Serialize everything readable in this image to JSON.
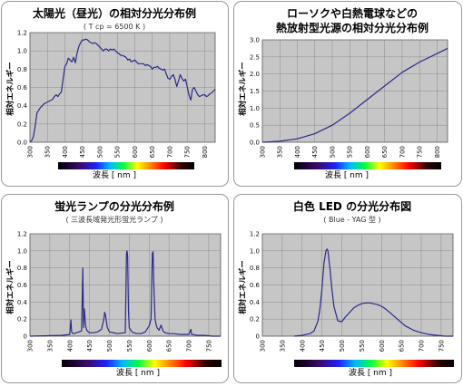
{
  "chart_data": [
    {
      "type": "line",
      "title": "太陽光（昼光）の相対分光分布例",
      "subtitle": "( T cp = 6500 K )",
      "xlabel": "波長 [ nm ]",
      "ylabel": "相対エネルギー",
      "x_ticks": [
        "300",
        "350",
        "400",
        "450",
        "500",
        "550",
        "600",
        "650",
        "700",
        "750",
        "800"
      ],
      "y_ticks": [
        "0.0",
        "0.2",
        "0.4",
        "0.6",
        "0.8",
        "1.0",
        "1.2"
      ],
      "xlim": [
        300,
        830
      ],
      "ylim": [
        0,
        1.2
      ],
      "grid": true,
      "series": [
        {
          "color": "#2a2a8a",
          "x": [
            300,
            305,
            310,
            315,
            320,
            325,
            330,
            335,
            340,
            345,
            350,
            355,
            360,
            365,
            370,
            375,
            380,
            385,
            390,
            395,
            400,
            405,
            410,
            415,
            420,
            425,
            430,
            435,
            440,
            445,
            450,
            455,
            460,
            465,
            470,
            475,
            480,
            485,
            490,
            495,
            500,
            505,
            510,
            515,
            520,
            525,
            530,
            535,
            540,
            545,
            550,
            555,
            560,
            565,
            570,
            575,
            580,
            585,
            590,
            595,
            600,
            605,
            610,
            615,
            620,
            625,
            630,
            635,
            640,
            645,
            650,
            655,
            660,
            665,
            670,
            675,
            680,
            685,
            690,
            695,
            700,
            705,
            710,
            715,
            720,
            725,
            730,
            735,
            740,
            745,
            750,
            755,
            760,
            765,
            770,
            775,
            780,
            785,
            790,
            795,
            800,
            805,
            810,
            815,
            820,
            825,
            830
          ],
          "y": [
            0.0,
            0.02,
            0.06,
            0.18,
            0.32,
            0.35,
            0.38,
            0.4,
            0.42,
            0.43,
            0.44,
            0.45,
            0.46,
            0.47,
            0.5,
            0.52,
            0.5,
            0.53,
            0.55,
            0.7,
            0.83,
            0.86,
            0.92,
            0.9,
            0.88,
            0.93,
            0.87,
            0.98,
            1.05,
            1.09,
            1.12,
            1.12,
            1.13,
            1.12,
            1.1,
            1.09,
            1.08,
            1.09,
            1.08,
            1.06,
            1.04,
            1.02,
            1.0,
            1.02,
            1.02,
            1.0,
            1.02,
            1.01,
            1.02,
            1.0,
            0.98,
            0.97,
            0.95,
            0.95,
            0.94,
            0.93,
            0.9,
            0.91,
            0.88,
            0.89,
            0.9,
            0.88,
            0.86,
            0.86,
            0.86,
            0.86,
            0.84,
            0.85,
            0.84,
            0.83,
            0.8,
            0.82,
            0.82,
            0.83,
            0.81,
            0.8,
            0.79,
            0.8,
            0.75,
            0.7,
            0.69,
            0.72,
            0.74,
            0.69,
            0.61,
            0.67,
            0.74,
            0.7,
            0.67,
            0.69,
            0.61,
            0.52,
            0.46,
            0.58,
            0.6,
            0.56,
            0.52,
            0.5,
            0.51,
            0.52,
            0.52,
            0.5,
            0.51,
            0.53,
            0.54,
            0.56,
            0.58
          ]
        }
      ]
    },
    {
      "type": "line",
      "title": "ローソクや白熱電球などの",
      "title2": "熱放射型光源の相対分光分布例",
      "xlabel": "波長 [ nm ]",
      "ylabel": "相対エネルギー",
      "x_ticks": [
        "300",
        "350",
        "400",
        "450",
        "500",
        "550",
        "600",
        "650",
        "700",
        "750",
        "800"
      ],
      "y_ticks": [
        "0.0",
        "0.5",
        "1.0",
        "1.5",
        "2.0",
        "2.5",
        "3.0"
      ],
      "xlim": [
        300,
        830
      ],
      "ylim": [
        0,
        3.0
      ],
      "grid": true,
      "series": [
        {
          "color": "#2a2a8a",
          "x": [
            300,
            350,
            400,
            450,
            500,
            550,
            600,
            650,
            700,
            750,
            800,
            830
          ],
          "y": [
            0.0,
            0.03,
            0.1,
            0.25,
            0.5,
            0.85,
            1.25,
            1.65,
            2.05,
            2.35,
            2.6,
            2.75
          ]
        }
      ]
    },
    {
      "type": "line",
      "title": "蛍光ランプの分光分布例",
      "subtitle": "( 三波長域発光形蛍光ランプ )",
      "xlabel": "波長 [ nm ]",
      "ylabel": "相対エネルギー",
      "x_ticks": [
        "300",
        "350",
        "400",
        "450",
        "500",
        "550",
        "600",
        "650",
        "700",
        "750"
      ],
      "y_ticks": [
        "0",
        "0.2",
        "0.4",
        "0.6",
        "0.8",
        "1.0",
        "1.2"
      ],
      "xlim": [
        300,
        780
      ],
      "ylim": [
        0,
        1.2
      ],
      "grid": true,
      "series": [
        {
          "color": "#2a2a8a",
          "x": [
            300,
            380,
            400,
            403,
            405,
            408,
            410,
            430,
            433,
            435,
            437,
            440,
            443,
            445,
            447,
            450,
            460,
            470,
            480,
            486,
            488,
            490,
            495,
            500,
            520,
            540,
            543,
            544,
            545,
            546,
            548,
            550,
            555,
            560,
            570,
            580,
            590,
            600,
            605,
            608,
            610,
            612,
            615,
            618,
            620,
            625,
            630,
            635,
            640,
            650,
            660,
            680,
            700,
            705,
            707,
            710,
            720,
            740,
            760,
            780
          ],
          "y": [
            0.0,
            0.01,
            0.02,
            0.19,
            0.05,
            0.03,
            0.03,
            0.06,
            0.8,
            0.1,
            0.32,
            0.12,
            0.07,
            0.06,
            0.05,
            0.04,
            0.04,
            0.05,
            0.08,
            0.2,
            0.28,
            0.25,
            0.1,
            0.05,
            0.03,
            0.04,
            0.95,
            1.0,
            0.98,
            0.93,
            0.3,
            0.1,
            0.06,
            0.04,
            0.03,
            0.03,
            0.05,
            0.12,
            0.2,
            0.97,
            0.99,
            0.6,
            0.2,
            0.13,
            0.1,
            0.07,
            0.13,
            0.06,
            0.04,
            0.03,
            0.03,
            0.02,
            0.02,
            0.08,
            0.02,
            0.02,
            0.01,
            0.01,
            0.0,
            0.0
          ]
        }
      ]
    },
    {
      "type": "line",
      "title": "白色 LED の分光分布図",
      "subtitle": "( Blue - YAG 型 )",
      "xlabel": "波長 [ nm ]",
      "ylabel": "相対エネルギー",
      "x_ticks": [
        "300",
        "350",
        "400",
        "450",
        "500",
        "550",
        "600",
        "650",
        "700",
        "750"
      ],
      "y_ticks": [
        "0",
        "0.2",
        "0.4",
        "0.6",
        "0.8",
        "1.0",
        "1.2"
      ],
      "xlim": [
        300,
        780
      ],
      "ylim": [
        0,
        1.2
      ],
      "grid": true,
      "series": [
        {
          "color": "#2a2a8a",
          "x": [
            380,
            400,
            420,
            430,
            440,
            445,
            450,
            455,
            460,
            463,
            465,
            470,
            475,
            480,
            490,
            500,
            510,
            520,
            530,
            540,
            550,
            560,
            570,
            580,
            590,
            600,
            610,
            620,
            630,
            640,
            650,
            660,
            680,
            700,
            720,
            740,
            760,
            780
          ],
          "y": [
            0.0,
            0.01,
            0.03,
            0.06,
            0.18,
            0.32,
            0.55,
            0.85,
            1.0,
            1.02,
            1.0,
            0.8,
            0.55,
            0.35,
            0.18,
            0.17,
            0.23,
            0.28,
            0.33,
            0.36,
            0.38,
            0.39,
            0.39,
            0.38,
            0.37,
            0.35,
            0.32,
            0.28,
            0.24,
            0.2,
            0.16,
            0.12,
            0.07,
            0.04,
            0.02,
            0.01,
            0.0,
            0.0
          ]
        }
      ]
    }
  ]
}
